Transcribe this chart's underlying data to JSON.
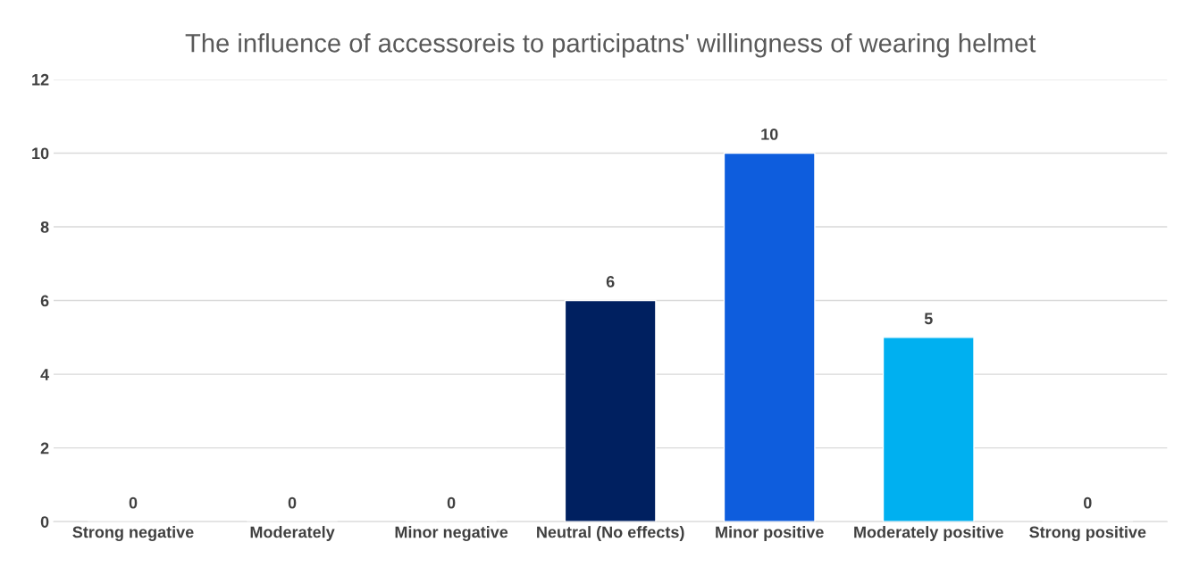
{
  "chart_data": {
    "type": "bar",
    "title": "The influence of accessoreis to participatns' willingness of wearing helmet",
    "categories": [
      "Strong negative",
      "Moderately",
      "Minor negative",
      "Neutral (No effects)",
      "Minor positive",
      "Moderately positive",
      "Strong positive"
    ],
    "values": [
      0,
      0,
      0,
      6,
      10,
      5,
      0
    ],
    "colors": [
      null,
      null,
      null,
      "#002060",
      "#0e5ddd",
      "#00b0f0",
      null
    ],
    "ylim": [
      0,
      12
    ],
    "yticks": [
      0,
      2,
      4,
      6,
      8,
      10,
      12
    ],
    "grid": "y",
    "data_labels": true
  }
}
